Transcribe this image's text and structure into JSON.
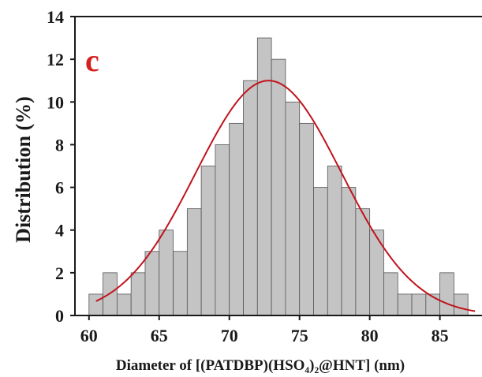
{
  "chart_data": {
    "type": "bar",
    "panel_label": "c",
    "xlabel": "Diameter of [(PATDBP)(HSO₄)₂@HNT] (nm)",
    "ylabel": "Distribution (%)",
    "xlim": [
      59,
      88
    ],
    "ylim": [
      0,
      14
    ],
    "x_ticks": [
      "60",
      "65",
      "70",
      "75",
      "80",
      "85"
    ],
    "y_ticks": [
      "0",
      "2",
      "4",
      "6",
      "8",
      "10",
      "12",
      "14"
    ],
    "bin_width": 1,
    "bin_starts": [
      60,
      61,
      62,
      63,
      64,
      65,
      66,
      67,
      68,
      69,
      70,
      71,
      72,
      73,
      74,
      75,
      76,
      77,
      78,
      79,
      80,
      81,
      82,
      83,
      84,
      85,
      86
    ],
    "values": [
      1,
      2,
      1,
      2,
      3,
      4,
      3,
      5,
      7,
      8,
      9,
      11,
      13,
      12,
      10,
      9,
      6,
      7,
      6,
      5,
      4,
      2,
      1,
      1,
      1,
      2,
      1
    ],
    "fit_curve": {
      "type": "gaussian",
      "mean": 72.8,
      "sd": 5.2,
      "peak": 11,
      "x_range": [
        60.5,
        87.5
      ]
    },
    "grid": false,
    "colors": {
      "bars": "#c4c4c4",
      "bar_edge": "#555555",
      "curve": "#c0141c",
      "panel_label": "#d42020",
      "axis": "#1a1a1a"
    }
  }
}
